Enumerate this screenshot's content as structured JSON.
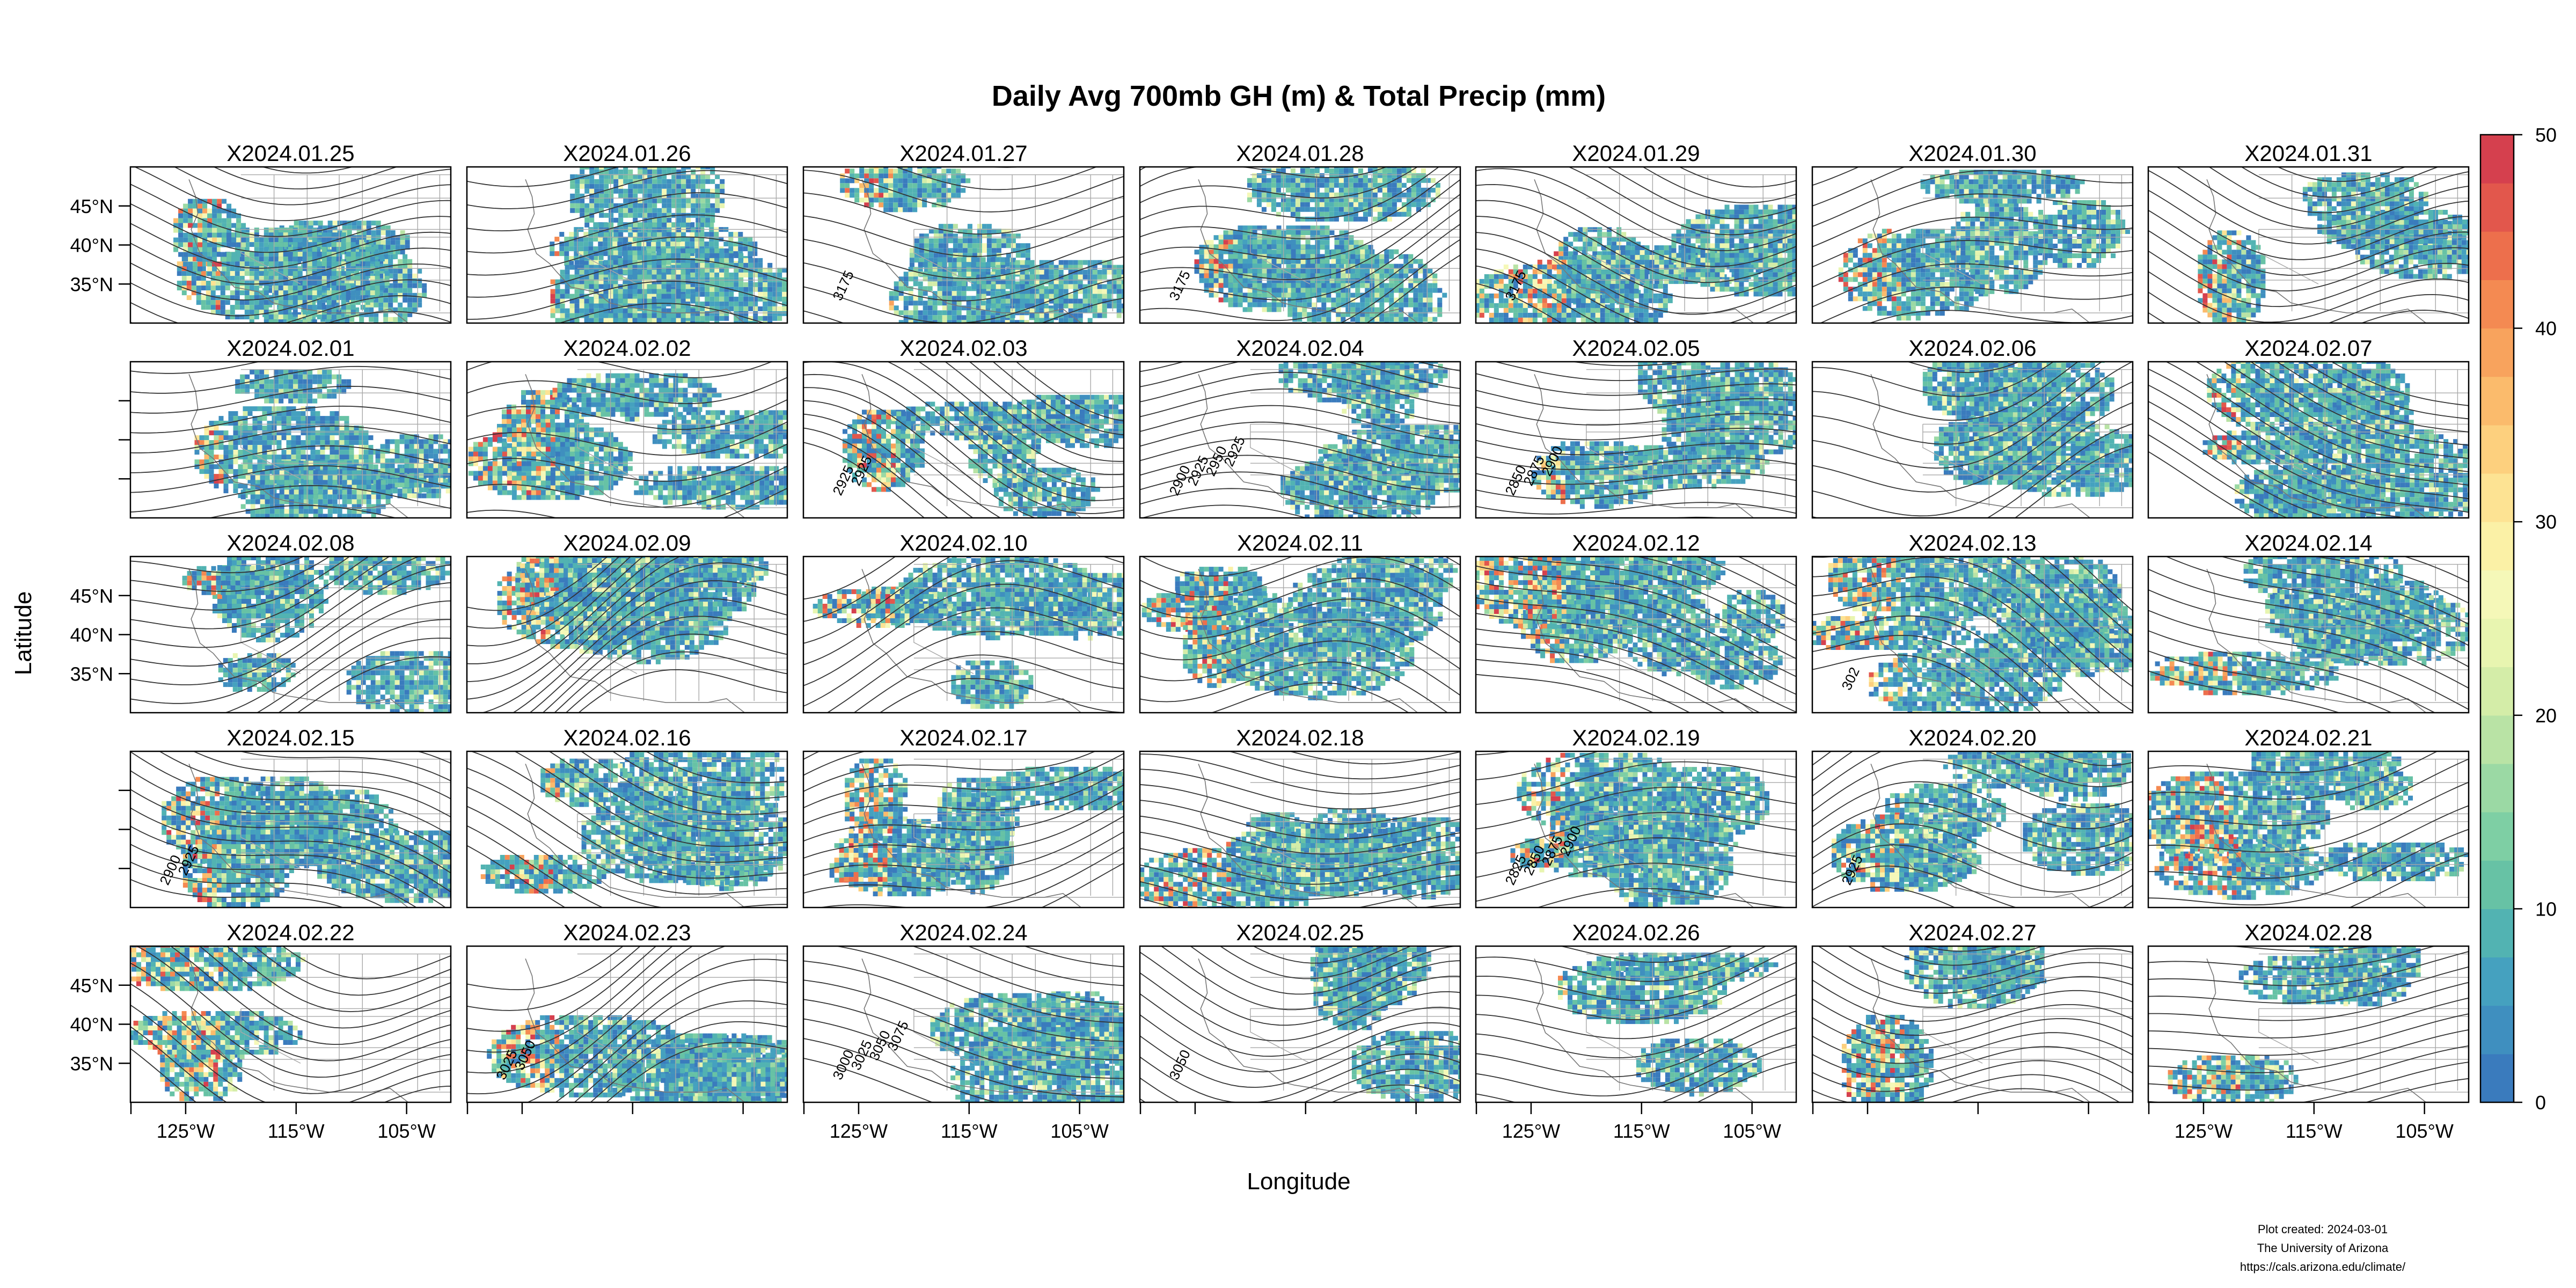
{
  "figure": {
    "title": "Daily Avg 700mb GH (m) & Total Precip (mm)",
    "xlabel": "Longitude",
    "ylabel": "Latitude",
    "lat_ticks": [
      "45°N",
      "40°N",
      "35°N"
    ],
    "lon_ticks": [
      "125°W",
      "115°W",
      "105°W"
    ],
    "credit": [
      "Plot created: 2024-03-01",
      "The University of Arizona",
      "https://cals.arizona.edu/climate/"
    ]
  },
  "panels": [
    {
      "date": "X2024.01.25",
      "contour_labels": []
    },
    {
      "date": "X2024.01.26",
      "contour_labels": []
    },
    {
      "date": "X2024.01.27",
      "contour_labels": [
        "3175"
      ]
    },
    {
      "date": "X2024.01.28",
      "contour_labels": [
        "3175"
      ]
    },
    {
      "date": "X2024.01.29",
      "contour_labels": [
        "3175"
      ]
    },
    {
      "date": "X2024.01.30",
      "contour_labels": []
    },
    {
      "date": "X2024.01.31",
      "contour_labels": []
    },
    {
      "date": "X2024.02.01",
      "contour_labels": []
    },
    {
      "date": "X2024.02.02",
      "contour_labels": []
    },
    {
      "date": "X2024.02.03",
      "contour_labels": [
        "2925",
        "2925"
      ]
    },
    {
      "date": "X2024.02.04",
      "contour_labels": [
        "2900",
        "2925",
        "2950",
        "2925"
      ]
    },
    {
      "date": "X2024.02.05",
      "contour_labels": [
        "2850",
        "2875",
        "2900"
      ]
    },
    {
      "date": "X2024.02.06",
      "contour_labels": []
    },
    {
      "date": "X2024.02.07",
      "contour_labels": []
    },
    {
      "date": "X2024.02.08",
      "contour_labels": []
    },
    {
      "date": "X2024.02.09",
      "contour_labels": []
    },
    {
      "date": "X2024.02.10",
      "contour_labels": []
    },
    {
      "date": "X2024.02.11",
      "contour_labels": []
    },
    {
      "date": "X2024.02.12",
      "contour_labels": []
    },
    {
      "date": "X2024.02.13",
      "contour_labels": [
        "302"
      ]
    },
    {
      "date": "X2024.02.14",
      "contour_labels": []
    },
    {
      "date": "X2024.02.15",
      "contour_labels": [
        "2900",
        "2925"
      ]
    },
    {
      "date": "X2024.02.16",
      "contour_labels": []
    },
    {
      "date": "X2024.02.17",
      "contour_labels": []
    },
    {
      "date": "X2024.02.18",
      "contour_labels": []
    },
    {
      "date": "X2024.02.19",
      "contour_labels": [
        "2825",
        "2850",
        "2875",
        "2900"
      ]
    },
    {
      "date": "X2024.02.20",
      "contour_labels": [
        "2925"
      ]
    },
    {
      "date": "X2024.02.21",
      "contour_labels": []
    },
    {
      "date": "X2024.02.22",
      "contour_labels": []
    },
    {
      "date": "X2024.02.23",
      "contour_labels": [
        "3025",
        "3050"
      ]
    },
    {
      "date": "X2024.02.24",
      "contour_labels": [
        "3000",
        "3025",
        "3050",
        "3075"
      ]
    },
    {
      "date": "X2024.02.25",
      "contour_labels": [
        "3050"
      ]
    },
    {
      "date": "X2024.02.26",
      "contour_labels": []
    },
    {
      "date": "X2024.02.27",
      "contour_labels": []
    },
    {
      "date": "X2024.02.28",
      "contour_labels": []
    }
  ],
  "colorbar": {
    "ticks": [
      "0",
      "10",
      "20",
      "30",
      "40",
      "50"
    ],
    "colors": [
      "#3a7bbd",
      "#3f8fbf",
      "#45a1bf",
      "#52b3b2",
      "#67c2a5",
      "#7ecfa4",
      "#9bd9a4",
      "#b9e3a5",
      "#d4eda8",
      "#e8f5b0",
      "#f5f8b8",
      "#fbf1a6",
      "#fde393",
      "#fdd07e",
      "#fbbb6c",
      "#f8a35d",
      "#f48a52",
      "#ed6f4c",
      "#e2574c",
      "#d5404e"
    ]
  }
}
